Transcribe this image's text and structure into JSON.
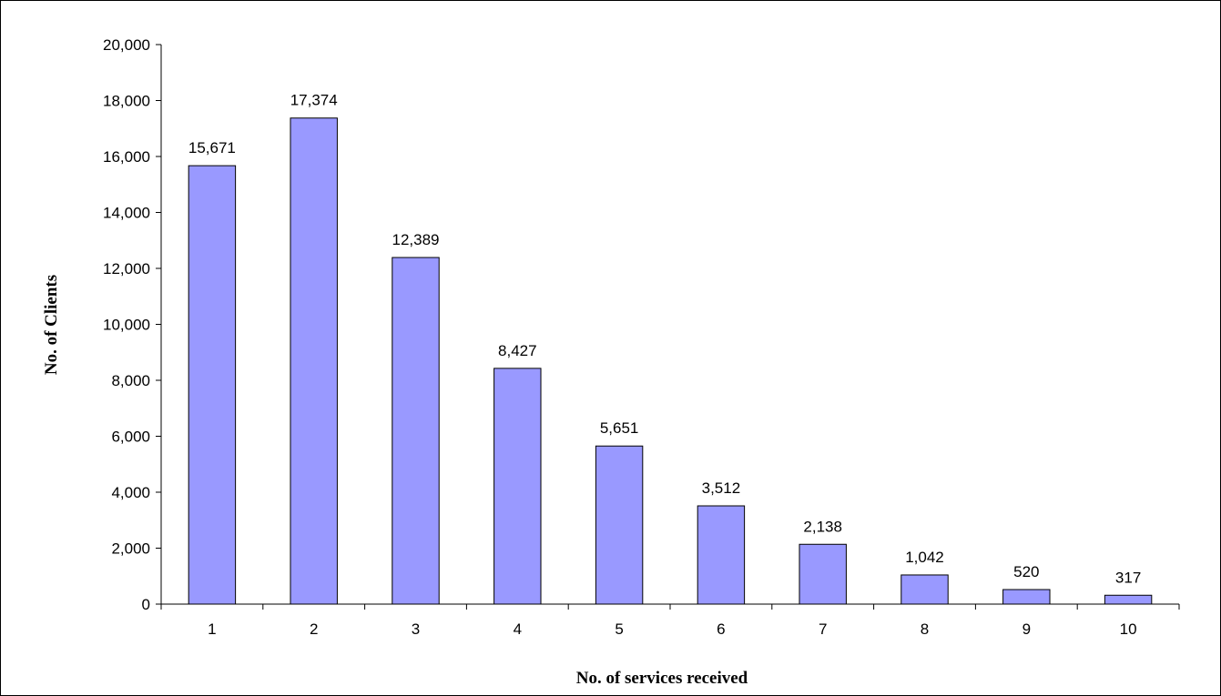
{
  "chart_data": {
    "type": "bar",
    "title": "",
    "xlabel": "No. of services received",
    "ylabel": "No. of Clients",
    "categories": [
      "1",
      "2",
      "3",
      "4",
      "5",
      "6",
      "7",
      "8",
      "9",
      "10"
    ],
    "values": [
      15671,
      17374,
      12389,
      8427,
      5651,
      3512,
      2138,
      1042,
      520,
      317
    ],
    "value_labels": [
      "15,671",
      "17,374",
      "12,389",
      "8,427",
      "5,651",
      "3,512",
      "2,138",
      "1,042",
      "520",
      "317"
    ],
    "ylim": [
      0,
      20000
    ],
    "yticks": [
      0,
      2000,
      4000,
      6000,
      8000,
      10000,
      12000,
      14000,
      16000,
      18000,
      20000
    ],
    "ytick_labels": [
      "0",
      "2,000",
      "4,000",
      "6,000",
      "8,000",
      "10,000",
      "12,000",
      "14,000",
      "16,000",
      "18,000",
      "20,000"
    ],
    "grid": false,
    "legend": "none",
    "colors": {
      "bar_fill": "#9999FF",
      "bar_stroke": "#000000",
      "axis": "#000000"
    }
  }
}
